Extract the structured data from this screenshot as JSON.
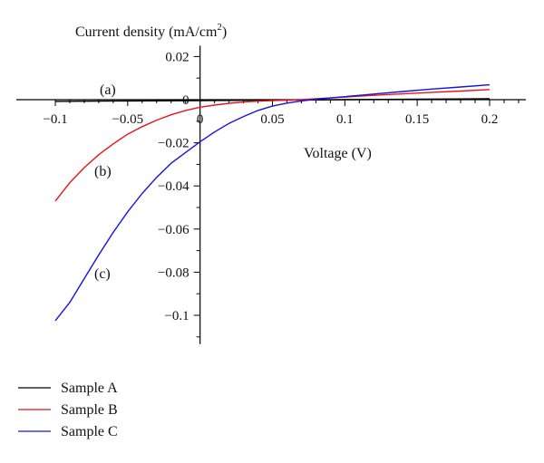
{
  "chart_data": {
    "type": "line",
    "ylabel": "Current density (mA/cm",
    "ylabel_sup": "2",
    "ylabel_close": ")",
    "xlabel": "Voltage (V)",
    "xlim": [
      -0.1,
      0.2
    ],
    "ylim": [
      -0.11,
      0.02
    ],
    "x_ticks": [
      -0.1,
      -0.05,
      0,
      0.05,
      0.1,
      0.15,
      0.2
    ],
    "x_tick_labels": [
      "−0.1",
      "−0.05",
      "0",
      "0.05",
      "0.1",
      "0.15",
      "0.2"
    ],
    "y_ticks": [
      0.02,
      0,
      -0.02,
      -0.04,
      -0.06,
      -0.08,
      -0.1
    ],
    "y_tick_labels": [
      "0.02",
      "0",
      "−0.02",
      "−0.04",
      "−0.06",
      "−0.08",
      "−0.1"
    ],
    "grid": false,
    "legend_position": "bottom-left",
    "series": [
      {
        "name": "Sample A",
        "color": "#000000",
        "annotation": "(a)",
        "x": [
          -0.1,
          -0.05,
          0,
          0.05,
          0.1,
          0.15,
          0.2
        ],
        "y": [
          -0.0008,
          -0.0006,
          -0.0004,
          -0.0002,
          0.0,
          0.0002,
          0.0004
        ]
      },
      {
        "name": "Sample B",
        "color": "#e8141c",
        "annotation": "(b)",
        "x": [
          -0.1,
          -0.09,
          -0.08,
          -0.07,
          -0.06,
          -0.05,
          -0.04,
          -0.03,
          -0.02,
          -0.01,
          0,
          0.01,
          0.02,
          0.03,
          0.04,
          0.05,
          0.06,
          0.07,
          0.08,
          0.09,
          0.1,
          0.12,
          0.14,
          0.16,
          0.18,
          0.2
        ],
        "y": [
          -0.047,
          -0.0385,
          -0.0315,
          -0.0255,
          -0.0205,
          -0.016,
          -0.0125,
          -0.0095,
          -0.007,
          -0.005,
          -0.0035,
          -0.0025,
          -0.0017,
          -0.0011,
          -0.0007,
          -0.0004,
          -0.0002,
          0.0,
          0.0004,
          0.0008,
          0.0012,
          0.002,
          0.0027,
          0.0034,
          0.004,
          0.0047
        ]
      },
      {
        "name": "Sample C",
        "color": "#1414e0",
        "annotation": "(c)",
        "x": [
          -0.1,
          -0.09,
          -0.08,
          -0.07,
          -0.06,
          -0.05,
          -0.04,
          -0.03,
          -0.02,
          -0.01,
          0,
          0.01,
          0.02,
          0.03,
          0.04,
          0.05,
          0.06,
          0.07,
          0.08,
          0.09,
          0.1,
          0.12,
          0.14,
          0.16,
          0.18,
          0.2
        ],
        "y": [
          -0.1025,
          -0.094,
          -0.083,
          -0.072,
          -0.0615,
          -0.052,
          -0.0435,
          -0.036,
          -0.0295,
          -0.0245,
          -0.0195,
          -0.015,
          -0.011,
          -0.0078,
          -0.005,
          -0.003,
          -0.0016,
          -0.0006,
          0.0002,
          0.0008,
          0.0014,
          0.0026,
          0.0038,
          0.0049,
          0.0059,
          0.0069
        ]
      }
    ]
  }
}
